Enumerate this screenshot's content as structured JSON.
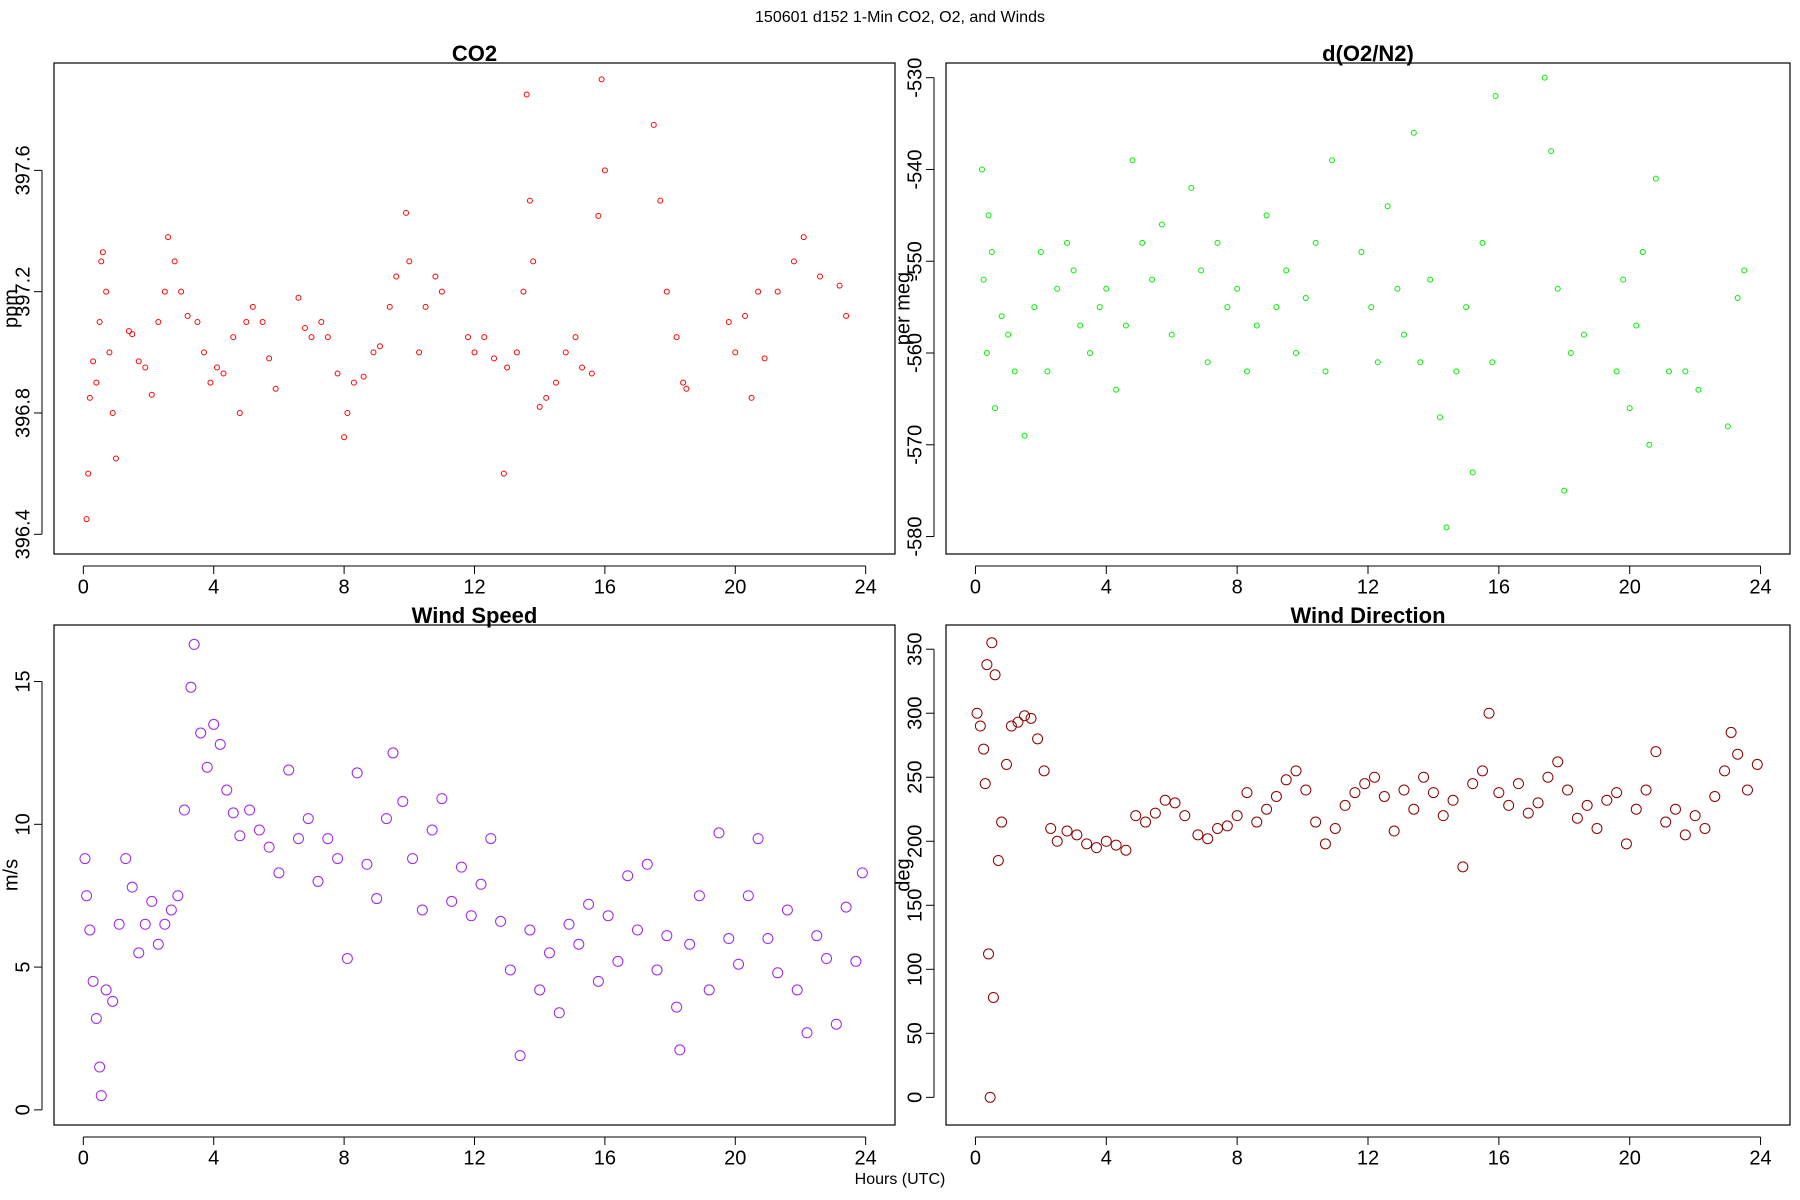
{
  "title": "150601   d152   1-Min CO2, O2, and Winds",
  "x_label": "Hours (UTC)",
  "chart_data": [
    {
      "type": "scatter",
      "title": "CO2",
      "y_label": "ppm",
      "color": "#ff0000",
      "xlim": [
        -0.9,
        24.9
      ],
      "xticks": [
        0,
        4,
        8,
        12,
        16,
        20,
        24
      ],
      "ylim": [
        396.335,
        397.954
      ],
      "yticks": [
        396.4,
        396.8,
        397.2,
        397.6
      ],
      "x": [
        0.1,
        0.15,
        0.2,
        0.3,
        0.4,
        0.5,
        0.55,
        0.6,
        0.7,
        0.8,
        0.9,
        1.0,
        1.4,
        1.5,
        1.7,
        1.9,
        2.1,
        2.3,
        2.5,
        2.6,
        2.8,
        3.0,
        3.2,
        3.5,
        3.7,
        3.9,
        4.1,
        4.3,
        4.6,
        4.8,
        5.0,
        5.2,
        5.5,
        5.7,
        5.9,
        6.6,
        6.8,
        7.0,
        7.3,
        7.5,
        7.8,
        8.0,
        8.1,
        8.3,
        8.6,
        8.9,
        9.1,
        9.4,
        9.6,
        9.9,
        10.0,
        10.3,
        10.5,
        10.8,
        11.0,
        11.8,
        12.0,
        12.3,
        12.6,
        12.9,
        13.0,
        13.3,
        13.5,
        13.6,
        13.7,
        13.8,
        14.0,
        14.2,
        14.5,
        14.8,
        15.1,
        15.3,
        15.6,
        15.8,
        15.9,
        16.0,
        17.5,
        17.7,
        17.9,
        18.2,
        18.4,
        18.5,
        19.8,
        20.0,
        20.3,
        20.5,
        20.7,
        20.9,
        21.3,
        21.8,
        22.1,
        22.6,
        23.2,
        23.4
      ],
      "values": [
        396.45,
        396.6,
        396.85,
        396.97,
        396.9,
        397.1,
        397.3,
        397.33,
        397.2,
        397.0,
        396.8,
        396.65,
        397.07,
        397.06,
        396.97,
        396.95,
        396.86,
        397.1,
        397.2,
        397.38,
        397.3,
        397.2,
        397.12,
        397.1,
        397.0,
        396.9,
        396.95,
        396.93,
        397.05,
        396.8,
        397.1,
        397.15,
        397.1,
        396.98,
        396.88,
        397.18,
        397.08,
        397.05,
        397.1,
        397.05,
        396.93,
        396.72,
        396.8,
        396.9,
        396.92,
        397.0,
        397.02,
        397.15,
        397.25,
        397.46,
        397.3,
        397.0,
        397.15,
        397.25,
        397.2,
        397.05,
        397.0,
        397.05,
        396.98,
        396.6,
        396.95,
        397.0,
        397.2,
        397.85,
        397.5,
        397.3,
        396.82,
        396.85,
        396.9,
        397.0,
        397.05,
        396.95,
        396.93,
        397.45,
        397.9,
        397.6,
        397.75,
        397.5,
        397.2,
        397.05,
        396.9,
        396.88,
        397.1,
        397.0,
        397.12,
        396.85,
        397.2,
        396.98,
        397.2,
        397.3,
        397.38,
        397.25,
        397.22,
        397.12
      ]
    },
    {
      "type": "scatter",
      "title": "d(O2/N2)",
      "y_label": "per meg",
      "color": "#00ee00",
      "xlim": [
        -0.9,
        24.9
      ],
      "xticks": [
        0,
        4,
        8,
        12,
        16,
        20,
        24
      ],
      "ylim": [
        -581.9,
        -528.4
      ],
      "yticks": [
        -580,
        -570,
        -560,
        -550,
        -540,
        -530
      ],
      "x": [
        0.2,
        0.25,
        0.35,
        0.4,
        0.5,
        0.6,
        0.8,
        1.0,
        1.2,
        1.5,
        1.8,
        2.0,
        2.2,
        2.5,
        2.8,
        3.0,
        3.2,
        3.5,
        3.8,
        4.0,
        4.3,
        4.6,
        4.8,
        5.1,
        5.4,
        5.7,
        6.0,
        6.6,
        6.9,
        7.1,
        7.4,
        7.7,
        8.0,
        8.3,
        8.6,
        8.9,
        9.2,
        9.5,
        9.8,
        10.1,
        10.4,
        10.7,
        10.9,
        11.8,
        12.1,
        12.3,
        12.6,
        12.9,
        13.1,
        13.4,
        13.6,
        13.9,
        14.2,
        14.4,
        14.7,
        15.0,
        15.2,
        15.5,
        15.8,
        15.9,
        17.4,
        17.6,
        17.8,
        18.0,
        18.2,
        18.6,
        19.6,
        19.8,
        20.0,
        20.2,
        20.4,
        20.6,
        20.8,
        21.2,
        21.7,
        22.1,
        23.0,
        23.3,
        23.5
      ],
      "values": [
        -540,
        -552,
        -560,
        -545,
        -549,
        -566,
        -556,
        -558,
        -562,
        -569,
        -555,
        -549,
        -562,
        -553,
        -548,
        -551,
        -557,
        -560,
        -555,
        -553,
        -564,
        -557,
        -539,
        -548,
        -552,
        -546,
        -558,
        -542,
        -551,
        -561,
        -548,
        -555,
        -553,
        -562,
        -557,
        -545,
        -555,
        -551,
        -560,
        -554,
        -548,
        -562,
        -539,
        -549,
        -555,
        -561,
        -544,
        -553,
        -558,
        -536,
        -561,
        -552,
        -567,
        -579,
        -562,
        -555,
        -573,
        -548,
        -561,
        -532,
        -530,
        -538,
        -553,
        -575,
        -560,
        -558,
        -562,
        -552,
        -566,
        -557,
        -549,
        -570,
        -541,
        -562,
        -562,
        -564,
        -568,
        -554,
        -551
      ]
    },
    {
      "type": "scatter",
      "title": "Wind Speed",
      "y_label": "m/s",
      "color": "#a020f0",
      "xlim": [
        -0.9,
        24.9
      ],
      "xticks": [
        0,
        4,
        8,
        12,
        16,
        20,
        24
      ],
      "ylim": [
        -0.53,
        16.98
      ],
      "yticks": [
        0,
        5,
        10,
        15
      ],
      "x": [
        0.05,
        0.1,
        0.2,
        0.3,
        0.4,
        0.5,
        0.55,
        0.7,
        0.9,
        1.1,
        1.3,
        1.5,
        1.7,
        1.9,
        2.1,
        2.3,
        2.5,
        2.7,
        2.9,
        3.1,
        3.3,
        3.4,
        3.6,
        3.8,
        4.0,
        4.2,
        4.4,
        4.6,
        4.8,
        5.1,
        5.4,
        5.7,
        6.0,
        6.3,
        6.6,
        6.9,
        7.2,
        7.5,
        7.8,
        8.1,
        8.4,
        8.7,
        9.0,
        9.3,
        9.5,
        9.8,
        10.1,
        10.4,
        10.7,
        11.0,
        11.3,
        11.6,
        11.9,
        12.2,
        12.5,
        12.8,
        13.1,
        13.4,
        13.7,
        14.0,
        14.3,
        14.6,
        14.9,
        15.2,
        15.5,
        15.8,
        16.1,
        16.4,
        16.7,
        17.0,
        17.3,
        17.6,
        17.9,
        18.2,
        18.3,
        18.6,
        18.9,
        19.2,
        19.5,
        19.8,
        20.1,
        20.4,
        20.7,
        21.0,
        21.3,
        21.6,
        21.9,
        22.2,
        22.5,
        22.8,
        23.1,
        23.4,
        23.7,
        23.9
      ],
      "values": [
        8.8,
        7.5,
        6.3,
        4.5,
        3.2,
        1.5,
        0.5,
        4.2,
        3.8,
        6.5,
        8.8,
        7.8,
        5.5,
        6.5,
        7.3,
        5.8,
        6.5,
        7.0,
        7.5,
        10.5,
        14.8,
        16.3,
        13.2,
        12.0,
        13.5,
        12.8,
        11.2,
        10.4,
        9.6,
        10.5,
        9.8,
        9.2,
        8.3,
        11.9,
        9.5,
        10.2,
        8.0,
        9.5,
        8.8,
        5.3,
        11.8,
        8.6,
        7.4,
        10.2,
        12.5,
        10.8,
        8.8,
        7.0,
        9.8,
        10.9,
        7.3,
        8.5,
        6.8,
        7.9,
        9.5,
        6.6,
        4.9,
        1.9,
        6.3,
        4.2,
        5.5,
        3.4,
        6.5,
        5.8,
        7.2,
        4.5,
        6.8,
        5.2,
        8.2,
        6.3,
        8.6,
        4.9,
        6.1,
        3.6,
        2.1,
        5.8,
        7.5,
        4.2,
        9.7,
        6.0,
        5.1,
        7.5,
        9.5,
        6.0,
        4.8,
        7.0,
        4.2,
        2.7,
        6.1,
        5.3,
        3.0,
        7.1,
        5.2,
        8.3
      ]
    },
    {
      "type": "scatter",
      "title": "Wind Direction",
      "y_label": "deg",
      "color": "#8b0000",
      "xlim": [
        -0.9,
        24.9
      ],
      "xticks": [
        0,
        4,
        8,
        12,
        16,
        20,
        24
      ],
      "ylim": [
        -21.6,
        368.9
      ],
      "yticks": [
        0,
        50,
        100,
        150,
        200,
        250,
        300,
        350
      ],
      "x": [
        0.05,
        0.15,
        0.25,
        0.3,
        0.35,
        0.4,
        0.45,
        0.5,
        0.55,
        0.6,
        0.7,
        0.8,
        0.95,
        1.1,
        1.3,
        1.5,
        1.7,
        1.9,
        2.1,
        2.3,
        2.5,
        2.8,
        3.1,
        3.4,
        3.7,
        4.0,
        4.3,
        4.6,
        4.9,
        5.2,
        5.5,
        5.8,
        6.1,
        6.4,
        6.8,
        7.1,
        7.4,
        7.7,
        8.0,
        8.3,
        8.6,
        8.9,
        9.2,
        9.5,
        9.8,
        10.1,
        10.4,
        10.7,
        11.0,
        11.3,
        11.6,
        11.9,
        12.2,
        12.5,
        12.8,
        13.1,
        13.4,
        13.7,
        14.0,
        14.3,
        14.6,
        14.9,
        15.2,
        15.5,
        15.7,
        16.0,
        16.3,
        16.6,
        16.9,
        17.2,
        17.5,
        17.8,
        18.1,
        18.4,
        18.7,
        19.0,
        19.3,
        19.6,
        19.9,
        20.2,
        20.5,
        20.8,
        21.1,
        21.4,
        21.7,
        22.0,
        22.3,
        22.6,
        22.9,
        23.1,
        23.3,
        23.6,
        23.9
      ],
      "values": [
        300,
        290,
        272,
        245,
        338,
        112,
        0,
        355,
        78,
        330,
        185,
        215,
        260,
        290,
        293,
        298,
        296,
        280,
        255,
        210,
        200,
        208,
        205,
        198,
        195,
        200,
        197,
        193,
        220,
        215,
        222,
        232,
        230,
        220,
        205,
        202,
        210,
        212,
        220,
        238,
        215,
        225,
        235,
        248,
        255,
        240,
        215,
        198,
        210,
        228,
        238,
        245,
        250,
        235,
        208,
        240,
        225,
        250,
        238,
        220,
        232,
        180,
        245,
        255,
        300,
        238,
        228,
        245,
        222,
        230,
        250,
        262,
        240,
        218,
        228,
        210,
        232,
        238,
        198,
        225,
        240,
        270,
        215,
        225,
        205,
        220,
        210,
        235,
        255,
        285,
        268,
        240,
        260
      ]
    }
  ]
}
